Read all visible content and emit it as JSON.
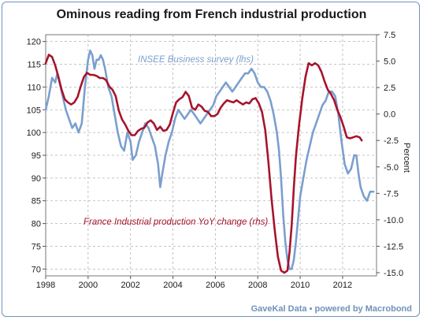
{
  "chart_data": {
    "type": "line",
    "title": "Ominous reading from French industrial production",
    "source": "GaveKal Data",
    "source_suffix": "powered by Macrobond",
    "y_left": {
      "ticks": [
        120,
        115,
        110,
        105,
        100,
        95,
        90,
        85,
        80,
        75,
        70
      ],
      "range": [
        68.5,
        121.5
      ]
    },
    "y_right": {
      "label": "Percent",
      "ticks": [
        "7.5",
        "5.0",
        "2.5",
        "0.0",
        "-2.5",
        "-5.0",
        "-7.5",
        "-10.0",
        "-12.5",
        "-15.0"
      ],
      "range": [
        -15.3,
        7.5
      ]
    },
    "x_axis": {
      "ticks": [
        "1998",
        "2000",
        "2002",
        "2004",
        "2006",
        "2008",
        "2010",
        "2012"
      ],
      "range": [
        1998,
        2013.6
      ]
    },
    "grid": true,
    "colors": {
      "insee": "#7b9fcf",
      "production": "#a6142c",
      "frame": "#6f92b8",
      "grid": "#b3b3b3"
    },
    "series": [
      {
        "name": "INSEE Business survey  (lhs)",
        "axis": "left",
        "x": [
          1998.0,
          1998.15,
          1998.3,
          1998.45,
          1998.55,
          1998.65,
          1998.8,
          1998.95,
          1999.1,
          1999.25,
          1999.4,
          1999.55,
          1999.7,
          1999.85,
          2000.0,
          2000.1,
          2000.2,
          2000.3,
          2000.4,
          2000.5,
          2000.6,
          2000.7,
          2000.8,
          2000.95,
          2001.1,
          2001.25,
          2001.4,
          2001.55,
          2001.7,
          2001.85,
          2002.0,
          2002.1,
          2002.25,
          2002.4,
          2002.55,
          2002.7,
          2002.85,
          2003.0,
          2003.15,
          2003.3,
          2003.4,
          2003.5,
          2003.65,
          2003.8,
          2003.95,
          2004.1,
          2004.25,
          2004.4,
          2004.55,
          2004.7,
          2004.85,
          2005.0,
          2005.15,
          2005.3,
          2005.45,
          2005.6,
          2005.75,
          2005.9,
          2006.05,
          2006.2,
          2006.35,
          2006.5,
          2006.65,
          2006.8,
          2006.95,
          2007.1,
          2007.25,
          2007.4,
          2007.55,
          2007.7,
          2007.85,
          2008.0,
          2008.15,
          2008.3,
          2008.45,
          2008.6,
          2008.75,
          2008.9,
          2009.0,
          2009.1,
          2009.2,
          2009.3,
          2009.4,
          2009.5,
          2009.6,
          2009.7,
          2009.8,
          2009.9,
          2010.0,
          2010.15,
          2010.3,
          2010.45,
          2010.6,
          2010.75,
          2010.9,
          2011.05,
          2011.2,
          2011.35,
          2011.5,
          2011.65,
          2011.8,
          2011.95,
          2012.1,
          2012.25,
          2012.4,
          2012.55,
          2012.65,
          2012.75,
          2012.85,
          2013.0,
          2013.15,
          2013.3,
          2013.45
        ],
        "y": [
          105,
          108,
          112,
          111,
          113,
          111,
          108,
          105,
          103,
          101,
          102,
          100,
          102,
          110,
          116,
          118,
          117,
          114,
          116,
          116,
          117,
          116,
          114,
          110,
          108,
          104,
          100,
          97,
          96,
          100,
          98,
          94,
          95,
          98,
          100,
          102,
          101,
          99,
          97,
          93,
          88,
          91,
          95,
          98,
          100,
          103,
          105,
          104,
          103,
          104,
          105,
          104,
          103,
          102,
          103,
          104,
          105,
          106,
          108,
          109,
          110,
          111,
          110,
          109,
          110,
          111,
          112,
          113,
          113,
          114,
          113,
          111,
          110,
          110,
          109,
          107,
          104,
          100,
          96,
          90,
          82,
          76,
          72,
          70,
          70,
          72,
          76,
          81,
          86,
          90,
          94,
          97,
          100,
          102,
          104,
          106,
          107,
          109,
          109,
          108,
          104,
          98,
          93,
          91,
          92,
          95,
          95,
          91,
          88,
          86,
          85,
          87,
          87
        ],
        "annotation": "INSEE Business survey  (lhs)"
      },
      {
        "name": "France Industrial production YoY change (rhs)",
        "axis": "right",
        "x": [
          1998.0,
          1998.15,
          1998.3,
          1998.45,
          1998.6,
          1998.75,
          1998.9,
          1999.05,
          1999.2,
          1999.35,
          1999.5,
          1999.65,
          1999.8,
          1999.95,
          2000.1,
          2000.25,
          2000.4,
          2000.55,
          2000.7,
          2000.85,
          2001.0,
          2001.15,
          2001.3,
          2001.45,
          2001.6,
          2001.75,
          2001.9,
          2002.05,
          2002.2,
          2002.35,
          2002.5,
          2002.65,
          2002.8,
          2002.95,
          2003.1,
          2003.25,
          2003.4,
          2003.55,
          2003.7,
          2003.85,
          2004.0,
          2004.15,
          2004.3,
          2004.45,
          2004.6,
          2004.75,
          2004.9,
          2005.05,
          2005.2,
          2005.35,
          2005.5,
          2005.65,
          2005.8,
          2005.95,
          2006.1,
          2006.25,
          2006.4,
          2006.55,
          2006.7,
          2006.85,
          2007.0,
          2007.15,
          2007.3,
          2007.45,
          2007.6,
          2007.75,
          2007.9,
          2008.05,
          2008.2,
          2008.35,
          2008.5,
          2008.65,
          2008.8,
          2008.95,
          2009.1,
          2009.25,
          2009.4,
          2009.5,
          2009.6,
          2009.7,
          2009.8,
          2009.95,
          2010.1,
          2010.25,
          2010.4,
          2010.55,
          2010.7,
          2010.85,
          2011.0,
          2011.15,
          2011.3,
          2011.45,
          2011.6,
          2011.75,
          2011.9,
          2012.05,
          2012.2,
          2012.35,
          2012.5,
          2012.65,
          2012.8,
          2012.9
        ],
        "y": [
          4.8,
          5.6,
          5.4,
          4.6,
          3.5,
          2.3,
          1.4,
          1.1,
          0.9,
          1.1,
          1.6,
          2.6,
          3.5,
          3.9,
          3.7,
          3.7,
          3.6,
          3.4,
          3.4,
          3.2,
          2.6,
          2.3,
          1.7,
          0.3,
          -0.5,
          -1.0,
          -1.6,
          -2.0,
          -2.0,
          -1.6,
          -1.4,
          -1.3,
          -0.8,
          -0.6,
          -0.9,
          -1.5,
          -1.2,
          -1.6,
          -1.5,
          -1.0,
          0.1,
          1.1,
          1.4,
          1.6,
          2.1,
          1.7,
          0.6,
          0.4,
          0.9,
          0.7,
          0.3,
          0.2,
          -0.2,
          -0.2,
          0.0,
          0.6,
          1.0,
          1.3,
          1.2,
          1.1,
          1.3,
          1.1,
          0.9,
          1.1,
          1.0,
          1.4,
          1.5,
          1.0,
          0.2,
          -1.5,
          -4.5,
          -8.0,
          -11.0,
          -13.5,
          -14.8,
          -15.0,
          -14.8,
          -13.0,
          -10.5,
          -7.0,
          -4.0,
          -1.0,
          1.5,
          3.5,
          4.8,
          4.6,
          4.8,
          4.6,
          4.0,
          3.1,
          2.3,
          1.9,
          1.3,
          0.4,
          -0.3,
          -1.2,
          -2.2,
          -2.3,
          -2.2,
          -2.1,
          -2.2,
          -2.5
        ],
        "annotation": "France Industrial production YoY change (rhs)"
      }
    ]
  }
}
